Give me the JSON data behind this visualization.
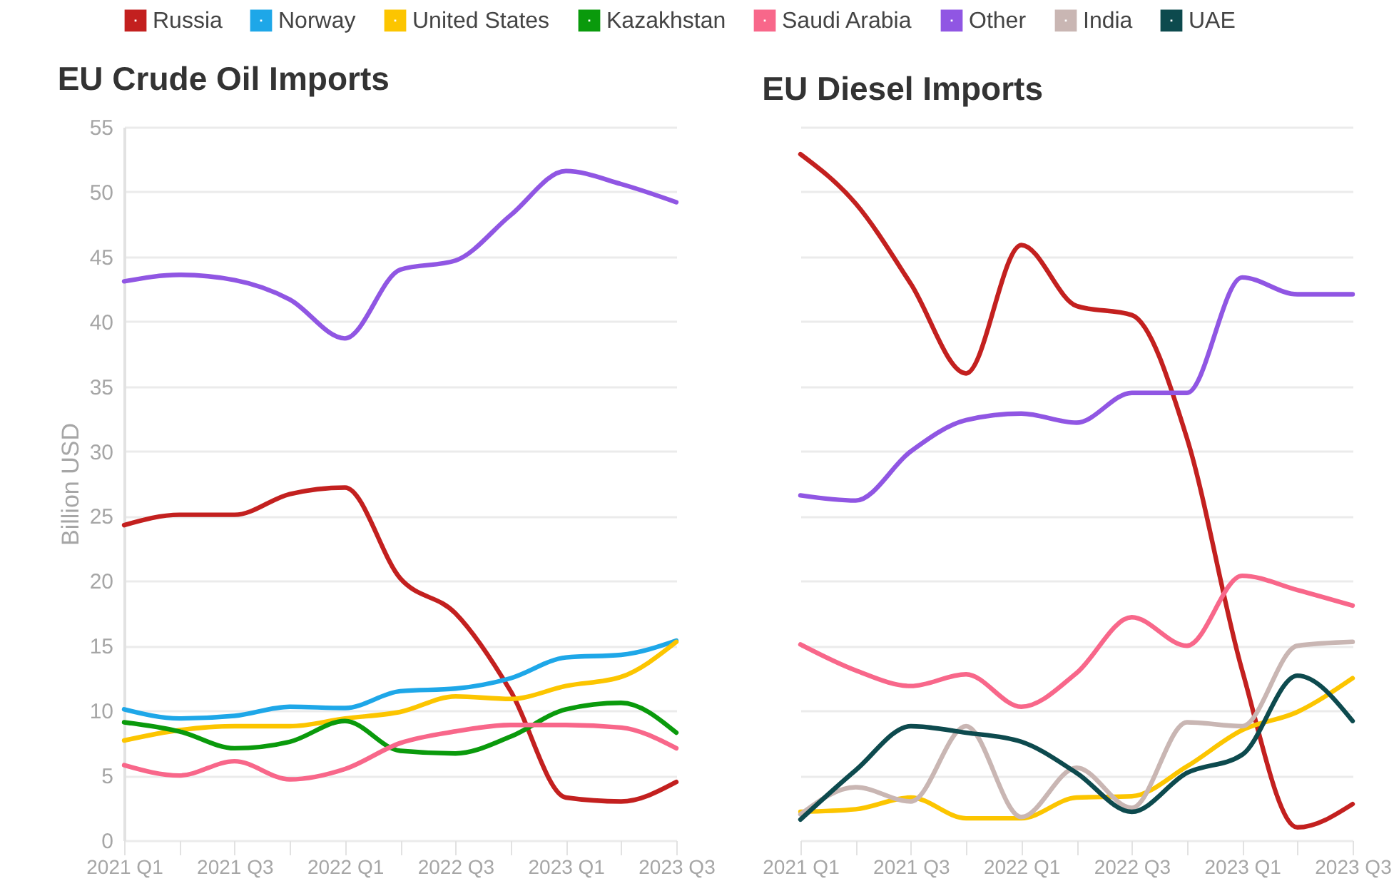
{
  "chart_data": [
    {
      "type": "line",
      "title": "EU Crude Oil Imports",
      "ylabel": "Billion USD",
      "categories": [
        "2021 Q1",
        null,
        "2021 Q3",
        null,
        "2022 Q1",
        null,
        "2022 Q3",
        null,
        "2023 Q1",
        null,
        "2023 Q3"
      ],
      "ylim": [
        0,
        55
      ],
      "yticks": [
        0,
        5,
        10,
        15,
        20,
        25,
        30,
        35,
        40,
        45,
        50,
        55
      ],
      "grid": "y",
      "legend": "top",
      "series": [
        {
          "name": "Russia",
          "color": "#c3201f",
          "values": [
            24.3,
            25.1,
            25.1,
            26.7,
            27.2,
            20.2,
            17.5,
            11.5,
            3.3,
            3.0,
            4.5
          ]
        },
        {
          "name": "Norway",
          "color": "#1ea7e8",
          "values": [
            10.1,
            9.4,
            9.6,
            10.3,
            10.2,
            11.5,
            11.7,
            12.5,
            14.1,
            14.3,
            15.4
          ]
        },
        {
          "name": "United States",
          "color": "#fcc500",
          "values": [
            7.7,
            8.5,
            8.8,
            8.8,
            9.4,
            9.9,
            11.1,
            10.9,
            11.9,
            12.6,
            15.3
          ]
        },
        {
          "name": "Kazakhstan",
          "color": "#0a9a0c",
          "values": [
            9.1,
            8.4,
            7.1,
            7.6,
            9.2,
            6.9,
            6.7,
            8.0,
            10.1,
            10.6,
            8.3
          ]
        },
        {
          "name": "Saudi Arabia",
          "color": "#f8678a",
          "values": [
            5.8,
            5.0,
            6.1,
            4.7,
            5.5,
            7.5,
            8.4,
            8.9,
            8.9,
            8.7,
            7.1
          ]
        },
        {
          "name": "Other",
          "color": "#9056e3",
          "values": [
            43.1,
            43.6,
            43.2,
            41.7,
            38.7,
            44.0,
            44.7,
            48.2,
            51.6,
            50.6,
            49.2
          ]
        }
      ]
    },
    {
      "type": "line",
      "title": "EU Diesel Imports",
      "categories": [
        "2021 Q1",
        null,
        "2021 Q3",
        null,
        "2022 Q1",
        null,
        "2022 Q3",
        null,
        "2023 Q1",
        null,
        "2023 Q3"
      ],
      "ylim": [
        0,
        55
      ],
      "yticks": [
        0,
        5,
        10,
        15,
        20,
        25,
        30,
        35,
        40,
        45,
        50,
        55
      ],
      "grid": "y",
      "tick_labels": "x",
      "legend": "top",
      "series": [
        {
          "name": "Russia",
          "color": "#c3201f",
          "values": [
            52.9,
            49.1,
            42.9,
            36.0,
            45.9,
            41.2,
            40.5,
            31.0,
            13.1,
            1.0,
            2.8
          ]
        },
        {
          "name": "United States",
          "color": "#fcc500",
          "values": [
            2.2,
            2.4,
            3.3,
            1.7,
            1.7,
            3.3,
            3.4,
            5.7,
            8.5,
            9.9,
            12.5
          ]
        },
        {
          "name": "Saudi Arabia",
          "color": "#f8678a",
          "values": [
            15.1,
            13.1,
            11.9,
            12.8,
            10.3,
            12.9,
            17.2,
            15.0,
            20.4,
            19.3,
            18.1
          ]
        },
        {
          "name": "Other",
          "color": "#9056e3",
          "values": [
            26.6,
            26.2,
            30.0,
            32.4,
            32.9,
            32.2,
            34.5,
            34.5,
            43.4,
            42.1,
            42.1
          ]
        },
        {
          "name": "India",
          "color": "#c9b6b3",
          "values": [
            2.0,
            4.1,
            3.0,
            8.8,
            1.8,
            5.6,
            2.5,
            9.1,
            8.8,
            15.0,
            15.3
          ]
        },
        {
          "name": "UAE",
          "color": "#0d4a4e",
          "values": [
            1.6,
            5.4,
            8.8,
            8.3,
            7.6,
            5.2,
            2.2,
            5.2,
            6.6,
            12.7,
            9.2
          ]
        }
      ]
    }
  ]
}
